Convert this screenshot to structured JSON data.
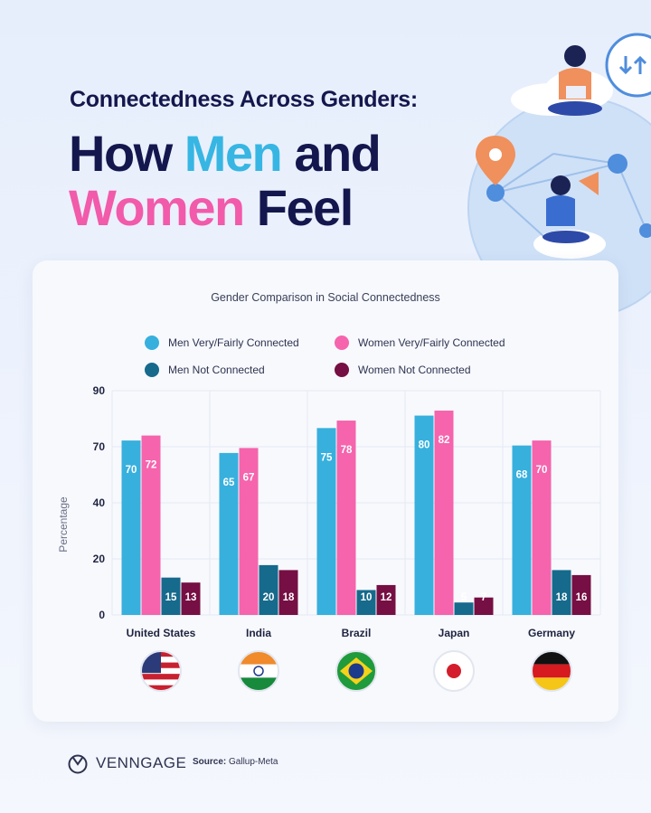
{
  "header": {
    "kicker": "Connectedness Across Genders:",
    "headline_line1_a": "How ",
    "headline_line1_b": "Men",
    "headline_line1_c": " and",
    "headline_line2_a": "Women",
    "headline_line2_b": " Feel"
  },
  "colors": {
    "men_connected": "#37b0dd",
    "women_connected": "#f564ad",
    "men_not": "#166a8c",
    "women_not": "#760f43",
    "navy": "#14174d"
  },
  "chart_data": {
    "type": "bar",
    "title": "Gender Comparison in Social Connectedness",
    "ylabel": "Percentage",
    "xlabel": "",
    "ylim": [
      0,
      90
    ],
    "yticks": [
      0,
      20,
      40,
      70,
      90
    ],
    "grid": true,
    "legend_position": "top",
    "categories": [
      "United States",
      "India",
      "Brazil",
      "Japan",
      "Germany"
    ],
    "series": [
      {
        "name": "Men Very/Fairly Connected",
        "values": [
          70,
          65,
          75,
          80,
          68
        ]
      },
      {
        "name": "Women Very/Fairly Connected",
        "values": [
          72,
          67,
          78,
          82,
          70
        ]
      },
      {
        "name": "Men Not Connected",
        "values": [
          15,
          20,
          10,
          5,
          18
        ]
      },
      {
        "name": "Women Not Connected",
        "values": [
          13,
          18,
          12,
          7,
          16
        ]
      }
    ]
  },
  "flags": [
    "us-flag-icon",
    "india-flag-icon",
    "brazil-flag-icon",
    "japan-flag-icon",
    "germany-flag-icon"
  ],
  "footer": {
    "brand": "VENNGAGE",
    "source_label": "Source:",
    "source_value": "Gallup-Meta"
  }
}
